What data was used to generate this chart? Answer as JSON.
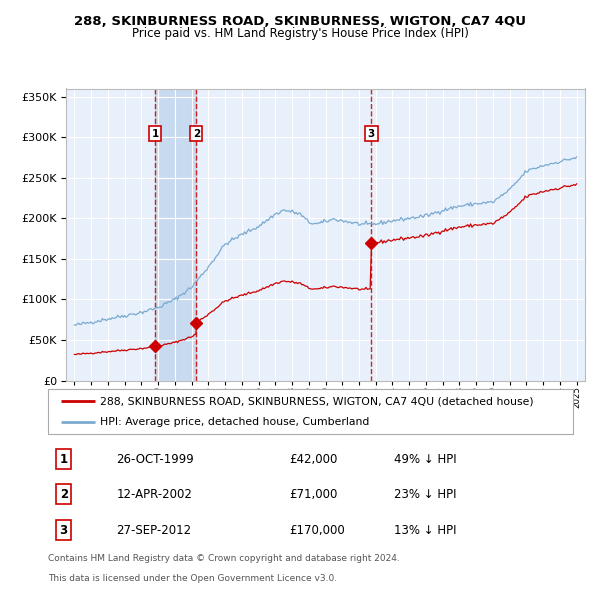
{
  "title": "288, SKINBURNESS ROAD, SKINBURNESS, WIGTON, CA7 4QU",
  "subtitle": "Price paid vs. HM Land Registry's House Price Index (HPI)",
  "sales": [
    {
      "num": 1,
      "date_label": "26-OCT-1999",
      "date_year": 1999.82,
      "price": 42000,
      "pct": "49% ↓ HPI"
    },
    {
      "num": 2,
      "date_label": "12-APR-2002",
      "date_year": 2002.28,
      "price": 71000,
      "pct": "23% ↓ HPI"
    },
    {
      "num": 3,
      "date_label": "27-SEP-2012",
      "date_year": 2012.74,
      "price": 170000,
      "pct": "13% ↓ HPI"
    }
  ],
  "legend_red": "288, SKINBURNESS ROAD, SKINBURNESS, WIGTON, CA7 4QU (detached house)",
  "legend_blue": "HPI: Average price, detached house, Cumberland",
  "footer1": "Contains HM Land Registry data © Crown copyright and database right 2024.",
  "footer2": "This data is licensed under the Open Government Licence v3.0.",
  "ylim": [
    0,
    360000
  ],
  "yticks": [
    0,
    50000,
    100000,
    150000,
    200000,
    250000,
    300000,
    350000
  ],
  "xlim_start": 1994.5,
  "xlim_end": 2025.5,
  "plot_bg": "#e8f0fb",
  "grid_color": "#ffffff",
  "red_line_color": "#cc0000",
  "blue_line_color": "#7aaad0",
  "highlight_bg": "#c8daf0",
  "dashed_color": "#cc0000",
  "hpi_anchors": [
    [
      1995.0,
      68000
    ],
    [
      1996.0,
      72000
    ],
    [
      1997.0,
      76000
    ],
    [
      1998.0,
      80000
    ],
    [
      1999.0,
      84000
    ],
    [
      2000.0,
      90000
    ],
    [
      2001.0,
      100000
    ],
    [
      2002.0,
      115000
    ],
    [
      2003.0,
      140000
    ],
    [
      2004.0,
      168000
    ],
    [
      2005.0,
      180000
    ],
    [
      2006.0,
      190000
    ],
    [
      2007.0,
      205000
    ],
    [
      2007.5,
      210000
    ],
    [
      2008.0,
      208000
    ],
    [
      2008.5,
      205000
    ],
    [
      2009.0,
      195000
    ],
    [
      2009.5,
      193000
    ],
    [
      2010.0,
      196000
    ],
    [
      2010.5,
      199000
    ],
    [
      2011.0,
      197000
    ],
    [
      2011.5,
      195000
    ],
    [
      2012.0,
      193000
    ],
    [
      2012.5,
      192000
    ],
    [
      2013.0,
      193000
    ],
    [
      2013.5,
      195000
    ],
    [
      2014.0,
      197000
    ],
    [
      2015.0,
      200000
    ],
    [
      2016.0,
      203000
    ],
    [
      2017.0,
      210000
    ],
    [
      2018.0,
      215000
    ],
    [
      2019.0,
      218000
    ],
    [
      2020.0,
      220000
    ],
    [
      2021.0,
      235000
    ],
    [
      2022.0,
      258000
    ],
    [
      2023.0,
      265000
    ],
    [
      2024.0,
      270000
    ],
    [
      2025.0,
      275000
    ]
  ]
}
